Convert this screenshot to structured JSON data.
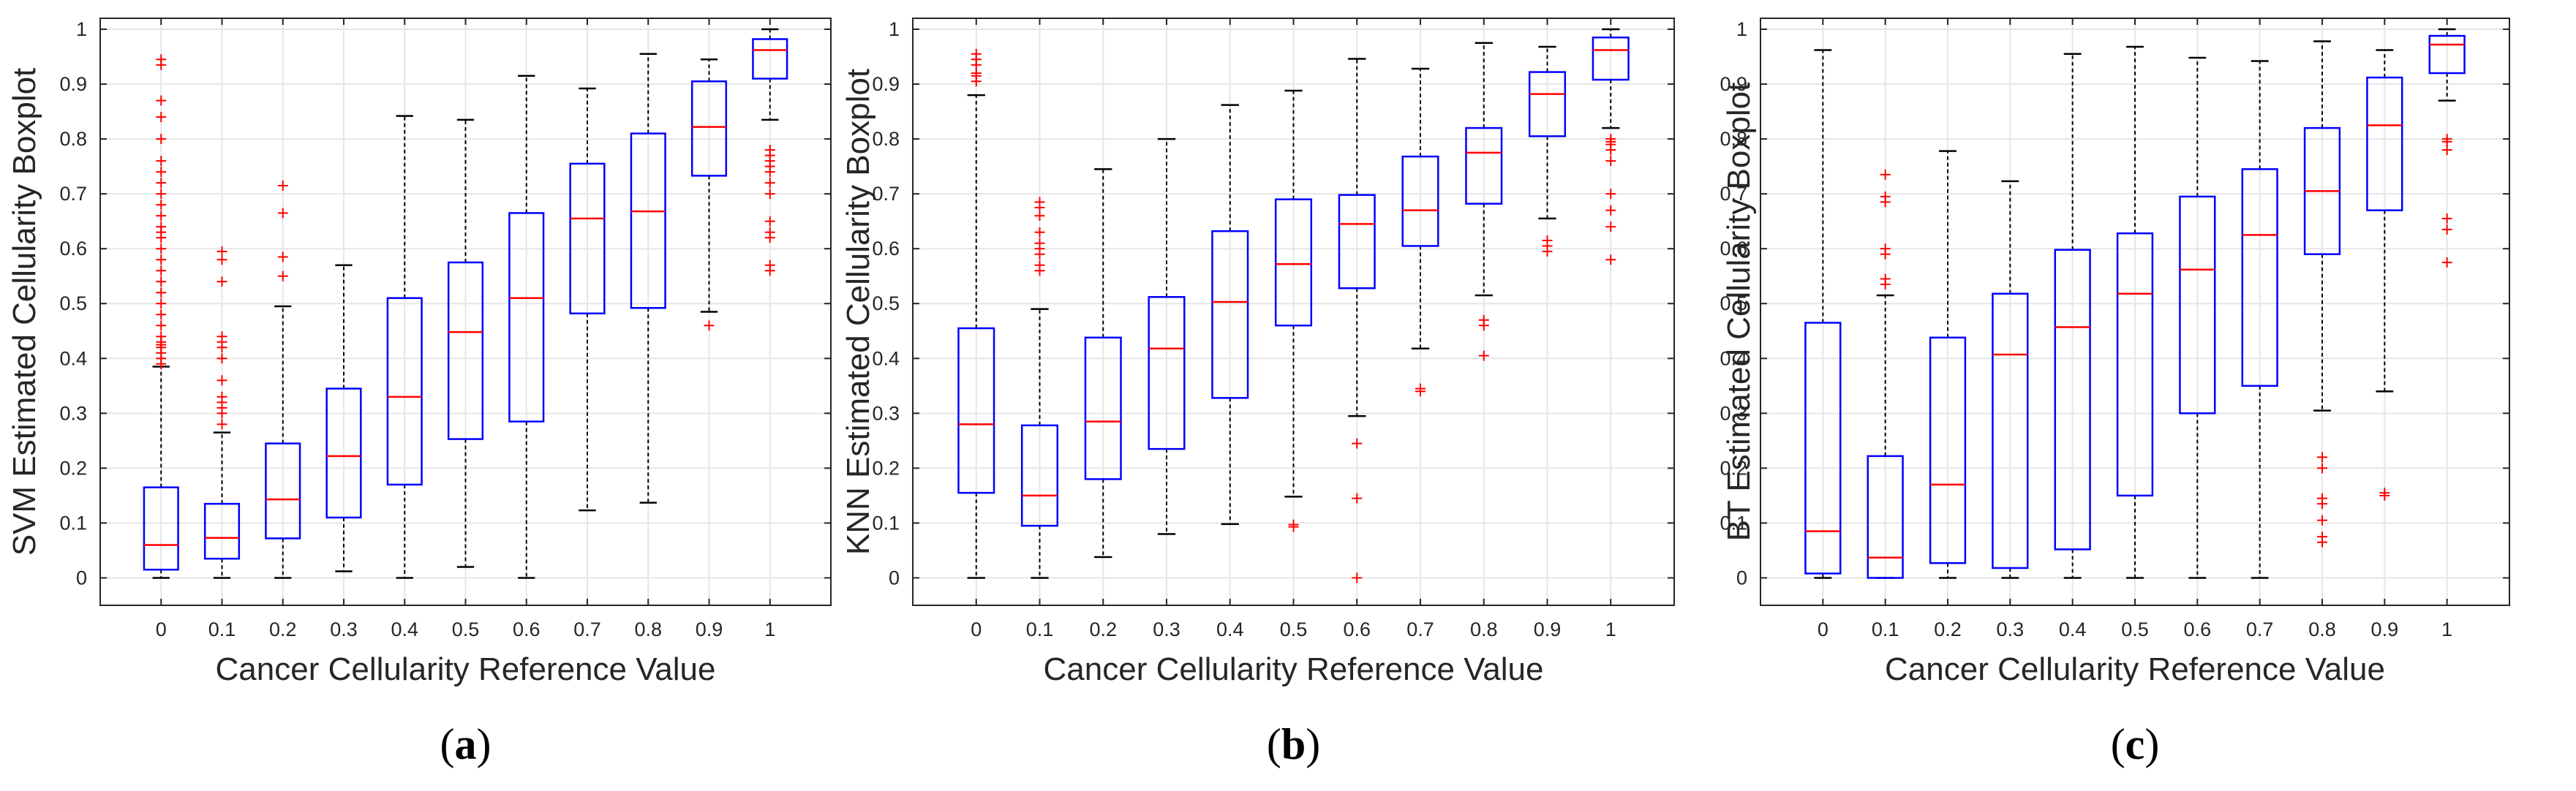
{
  "chart_data": [
    {
      "type": "boxplot",
      "panel_label": "a",
      "xlabel": "Cancer Cellularity Reference Value",
      "ylabel": "SVM Estimated Cellularity Boxplot",
      "categories": [
        "0",
        "0.1",
        "0.2",
        "0.3",
        "0.4",
        "0.5",
        "0.6",
        "0.7",
        "0.8",
        "0.9",
        "1"
      ],
      "yticks": [
        "0",
        "0.1",
        "0.2",
        "0.3",
        "0.4",
        "0.5",
        "0.6",
        "0.7",
        "0.8",
        "0.9",
        "1"
      ],
      "ylim": [
        -0.05,
        1.02
      ],
      "grid": true,
      "boxes": [
        {
          "q1": 0.015,
          "median": 0.06,
          "q3": 0.165,
          "wlo": 0.0,
          "whi": 0.385,
          "outliers": [
            0.39,
            0.4,
            0.41,
            0.42,
            0.425,
            0.43,
            0.44,
            0.46,
            0.48,
            0.5,
            0.52,
            0.54,
            0.56,
            0.58,
            0.6,
            0.62,
            0.63,
            0.64,
            0.66,
            0.68,
            0.7,
            0.72,
            0.74,
            0.76,
            0.8,
            0.84,
            0.87,
            0.935,
            0.945
          ]
        },
        {
          "q1": 0.035,
          "median": 0.073,
          "q3": 0.135,
          "wlo": 0.0,
          "whi": 0.265,
          "outliers": [
            0.28,
            0.3,
            0.31,
            0.32,
            0.33,
            0.36,
            0.4,
            0.42,
            0.43,
            0.44,
            0.54,
            0.58,
            0.595
          ]
        },
        {
          "q1": 0.072,
          "median": 0.143,
          "q3": 0.245,
          "wlo": 0.0,
          "whi": 0.495,
          "outliers": [
            0.55,
            0.585,
            0.665,
            0.715
          ]
        },
        {
          "q1": 0.11,
          "median": 0.222,
          "q3": 0.345,
          "wlo": 0.012,
          "whi": 0.57,
          "outliers": []
        },
        {
          "q1": 0.17,
          "median": 0.33,
          "q3": 0.51,
          "wlo": 0.0,
          "whi": 0.842,
          "outliers": []
        },
        {
          "q1": 0.253,
          "median": 0.448,
          "q3": 0.575,
          "wlo": 0.02,
          "whi": 0.835,
          "outliers": []
        },
        {
          "q1": 0.285,
          "median": 0.51,
          "q3": 0.665,
          "wlo": 0.0,
          "whi": 0.915,
          "outliers": []
        },
        {
          "q1": 0.482,
          "median": 0.655,
          "q3": 0.755,
          "wlo": 0.123,
          "whi": 0.892,
          "outliers": []
        },
        {
          "q1": 0.492,
          "median": 0.668,
          "q3": 0.81,
          "wlo": 0.137,
          "whi": 0.955,
          "outliers": []
        },
        {
          "q1": 0.733,
          "median": 0.822,
          "q3": 0.905,
          "wlo": 0.485,
          "whi": 0.945,
          "outliers": [
            0.46
          ]
        },
        {
          "q1": 0.91,
          "median": 0.962,
          "q3": 0.982,
          "wlo": 0.835,
          "whi": 1.0,
          "outliers": [
            0.56,
            0.57,
            0.62,
            0.63,
            0.65,
            0.7,
            0.72,
            0.74,
            0.75,
            0.76,
            0.77,
            0.78
          ]
        }
      ]
    },
    {
      "type": "boxplot",
      "panel_label": "b",
      "xlabel": "Cancer Cellularity Reference Value",
      "ylabel": "KNN Estimated Cellularity Boxplot",
      "categories": [
        "0",
        "0.1",
        "0.2",
        "0.3",
        "0.4",
        "0.5",
        "0.6",
        "0.7",
        "0.8",
        "0.9",
        "1"
      ],
      "yticks": [
        "0",
        "0.1",
        "0.2",
        "0.3",
        "0.4",
        "0.5",
        "0.6",
        "0.7",
        "0.8",
        "0.9",
        "1"
      ],
      "ylim": [
        -0.05,
        1.02
      ],
      "grid": true,
      "boxes": [
        {
          "q1": 0.155,
          "median": 0.28,
          "q3": 0.455,
          "wlo": 0.0,
          "whi": 0.88,
          "outliers": [
            0.905,
            0.915,
            0.92,
            0.935,
            0.945,
            0.955
          ]
        },
        {
          "q1": 0.095,
          "median": 0.15,
          "q3": 0.278,
          "wlo": 0.0,
          "whi": 0.49,
          "outliers": [
            0.56,
            0.57,
            0.59,
            0.6,
            0.61,
            0.63,
            0.66,
            0.675,
            0.685
          ]
        },
        {
          "q1": 0.18,
          "median": 0.285,
          "q3": 0.438,
          "wlo": 0.038,
          "whi": 0.745,
          "outliers": []
        },
        {
          "q1": 0.235,
          "median": 0.418,
          "q3": 0.512,
          "wlo": 0.08,
          "whi": 0.8,
          "outliers": []
        },
        {
          "q1": 0.328,
          "median": 0.503,
          "q3": 0.632,
          "wlo": 0.098,
          "whi": 0.862,
          "outliers": []
        },
        {
          "q1": 0.46,
          "median": 0.572,
          "q3": 0.69,
          "wlo": 0.148,
          "whi": 0.888,
          "outliers": [
            0.093,
            0.097
          ]
        },
        {
          "q1": 0.528,
          "median": 0.645,
          "q3": 0.698,
          "wlo": 0.295,
          "whi": 0.946,
          "outliers": [
            0.0,
            0.145,
            0.245
          ]
        },
        {
          "q1": 0.605,
          "median": 0.67,
          "q3": 0.768,
          "wlo": 0.418,
          "whi": 0.928,
          "outliers": [
            0.34,
            0.345
          ]
        },
        {
          "q1": 0.682,
          "median": 0.775,
          "q3": 0.82,
          "wlo": 0.515,
          "whi": 0.975,
          "outliers": [
            0.405,
            0.46,
            0.47
          ]
        },
        {
          "q1": 0.805,
          "median": 0.882,
          "q3": 0.922,
          "wlo": 0.655,
          "whi": 0.968,
          "outliers": [
            0.595,
            0.605,
            0.615
          ]
        },
        {
          "q1": 0.908,
          "median": 0.962,
          "q3": 0.985,
          "wlo": 0.82,
          "whi": 1.0,
          "outliers": [
            0.58,
            0.64,
            0.67,
            0.7,
            0.76,
            0.78,
            0.79,
            0.795,
            0.8
          ]
        }
      ]
    },
    {
      "type": "boxplot",
      "panel_label": "c",
      "xlabel": "Cancer Cellularity Reference Value",
      "ylabel": "BT Estimated Cellularity Boxplot",
      "categories": [
        "0",
        "0.1",
        "0.2",
        "0.3",
        "0.4",
        "0.5",
        "0.6",
        "0.7",
        "0.8",
        "0.9",
        "1"
      ],
      "yticks": [
        "0",
        "0.1",
        "0.2",
        "0.3",
        "0.4",
        "0.5",
        "0.6",
        "0.7",
        "0.8",
        "0.9",
        "1"
      ],
      "ylim": [
        -0.05,
        1.02
      ],
      "grid": true,
      "boxes": [
        {
          "q1": 0.008,
          "median": 0.085,
          "q3": 0.465,
          "wlo": 0.0,
          "whi": 0.962,
          "outliers": []
        },
        {
          "q1": 0.0,
          "median": 0.037,
          "q3": 0.222,
          "wlo": 0.0,
          "whi": 0.515,
          "outliers": [
            0.535,
            0.545,
            0.59,
            0.6,
            0.685,
            0.695,
            0.735
          ]
        },
        {
          "q1": 0.027,
          "median": 0.17,
          "q3": 0.438,
          "wlo": 0.0,
          "whi": 0.778,
          "outliers": []
        },
        {
          "q1": 0.018,
          "median": 0.407,
          "q3": 0.518,
          "wlo": 0.0,
          "whi": 0.723,
          "outliers": []
        },
        {
          "q1": 0.052,
          "median": 0.457,
          "q3": 0.598,
          "wlo": 0.0,
          "whi": 0.955,
          "outliers": []
        },
        {
          "q1": 0.15,
          "median": 0.518,
          "q3": 0.628,
          "wlo": 0.0,
          "whi": 0.968,
          "outliers": []
        },
        {
          "q1": 0.3,
          "median": 0.562,
          "q3": 0.695,
          "wlo": 0.0,
          "whi": 0.948,
          "outliers": []
        },
        {
          "q1": 0.35,
          "median": 0.625,
          "q3": 0.745,
          "wlo": 0.0,
          "whi": 0.942,
          "outliers": []
        },
        {
          "q1": 0.59,
          "median": 0.705,
          "q3": 0.82,
          "wlo": 0.305,
          "whi": 0.978,
          "outliers": [
            0.065,
            0.075,
            0.105,
            0.135,
            0.145,
            0.2,
            0.22
          ]
        },
        {
          "q1": 0.67,
          "median": 0.825,
          "q3": 0.912,
          "wlo": 0.34,
          "whi": 0.962,
          "outliers": [
            0.15,
            0.155
          ]
        },
        {
          "q1": 0.92,
          "median": 0.972,
          "q3": 0.988,
          "wlo": 0.87,
          "whi": 1.0,
          "outliers": [
            0.575,
            0.635,
            0.655,
            0.78,
            0.795,
            0.8
          ]
        }
      ]
    }
  ],
  "colors": {
    "box": "#0000ff",
    "median": "#ff0000",
    "outlier": "#ff0000",
    "whisker": "#000000",
    "grid": "#e6e6e6",
    "axis": "#262626"
  }
}
